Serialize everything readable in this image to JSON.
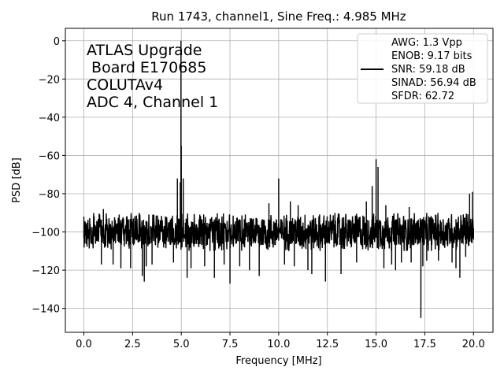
{
  "chart_data": {
    "type": "line",
    "title": "Run 1743, channel1, Sine Freq.: 4.985 MHz",
    "xlabel": "Frequency [MHz]",
    "ylabel": "PSD [dB]",
    "xlim": [
      -0.95,
      21.0
    ],
    "ylim": [
      -152.5,
      6.5
    ],
    "xticks": [
      0.0,
      2.5,
      5.0,
      7.5,
      10.0,
      12.5,
      15.0,
      17.5,
      20.0
    ],
    "xtick_labels": [
      "0.0",
      "2.5",
      "5.0",
      "7.5",
      "10.0",
      "12.5",
      "15.0",
      "17.5",
      "20.0"
    ],
    "yticks": [
      0,
      -20,
      -40,
      -60,
      -80,
      -100,
      -120,
      -140
    ],
    "ytick_labels": [
      "0",
      "−20",
      "−40",
      "−60",
      "−80",
      "−100",
      "−120",
      "−140"
    ],
    "grid": true,
    "legend_position": "top-right",
    "line_color": "#000000",
    "annotation": [
      "ATLAS Upgrade",
      " Board E170685",
      "COLUTAv4",
      "ADC 4, Channel 1"
    ],
    "legend_lines": [
      "AWG: 1.3 Vpp",
      "ENOB: 9.17 bits",
      "SNR: 59.18 dB",
      "SINAD: 56.94 dB",
      "SFDR: 62.72"
    ],
    "series": [
      {
        "noise_floor_db": -100,
        "noise_spread_db": 10,
        "points": [
          [
            0.0,
            -92
          ],
          [
            0.05,
            -106
          ],
          [
            0.9,
            -117
          ],
          [
            1.0,
            -88
          ],
          [
            1.5,
            -117
          ],
          [
            1.9,
            -119
          ],
          [
            2.4,
            -119
          ],
          [
            3.0,
            -123
          ],
          [
            3.1,
            -126
          ],
          [
            3.2,
            -118
          ],
          [
            3.5,
            -117
          ],
          [
            4.6,
            -116
          ],
          [
            4.8,
            -72
          ],
          [
            4.95,
            -74
          ],
          [
            4.985,
            0
          ],
          [
            5.0,
            -55
          ],
          [
            5.1,
            -72
          ],
          [
            5.3,
            -124
          ],
          [
            5.5,
            -119
          ],
          [
            6.2,
            -118
          ],
          [
            6.7,
            -124
          ],
          [
            7.2,
            -117
          ],
          [
            7.5,
            -127
          ],
          [
            8.0,
            -118
          ],
          [
            8.5,
            -120
          ],
          [
            9.0,
            -123
          ],
          [
            9.5,
            -85
          ],
          [
            10.0,
            -72
          ],
          [
            10.3,
            -117
          ],
          [
            10.6,
            -84
          ],
          [
            10.8,
            -118
          ],
          [
            11.0,
            -86
          ],
          [
            11.5,
            -120
          ],
          [
            11.7,
            -122
          ],
          [
            12.4,
            -126
          ],
          [
            12.9,
            -106
          ],
          [
            13.2,
            -122
          ],
          [
            14.0,
            -116
          ],
          [
            14.5,
            -84
          ],
          [
            14.8,
            -76
          ],
          [
            15.0,
            -62
          ],
          [
            15.1,
            -66
          ],
          [
            15.4,
            -119
          ],
          [
            15.5,
            -86
          ],
          [
            15.8,
            -117
          ],
          [
            16.0,
            -120
          ],
          [
            16.3,
            -116
          ],
          [
            16.7,
            -87
          ],
          [
            16.8,
            -116
          ],
          [
            17.3,
            -145
          ],
          [
            17.4,
            -118
          ],
          [
            17.6,
            -115
          ],
          [
            18.2,
            -115
          ],
          [
            18.9,
            -116
          ],
          [
            19.1,
            -119
          ],
          [
            19.3,
            -124
          ],
          [
            19.6,
            -113
          ],
          [
            19.8,
            -80
          ],
          [
            19.95,
            -79
          ],
          [
            20.0,
            -104
          ]
        ]
      }
    ]
  }
}
